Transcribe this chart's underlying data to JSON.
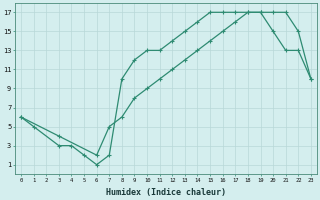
{
  "line1_x": [
    0,
    1,
    3,
    4,
    5,
    6,
    7,
    8,
    9,
    10,
    11,
    12,
    13,
    14,
    15,
    16,
    17,
    18,
    19,
    20,
    21,
    22,
    23
  ],
  "line1_y": [
    6,
    5,
    3,
    3,
    2,
    1,
    2,
    10,
    12,
    13,
    13,
    14,
    15,
    16,
    17,
    17,
    17,
    17,
    17,
    15,
    13,
    13,
    10
  ],
  "line2_x": [
    0,
    3,
    6,
    7,
    8,
    9,
    10,
    11,
    12,
    13,
    14,
    15,
    16,
    17,
    18,
    19,
    20,
    21,
    22,
    23
  ],
  "line2_y": [
    6,
    4,
    2,
    5,
    6,
    8,
    9,
    10,
    11,
    12,
    13,
    14,
    15,
    16,
    17,
    17,
    17,
    17,
    15,
    10
  ],
  "line_color": "#2e8b72",
  "bg_color": "#d4eeee",
  "grid_color": "#b8d8d8",
  "xlabel": "Humidex (Indice chaleur)",
  "xlim": [
    -0.5,
    23.5
  ],
  "ylim": [
    0,
    18
  ],
  "xticks": [
    0,
    1,
    2,
    3,
    4,
    5,
    6,
    7,
    8,
    9,
    10,
    11,
    12,
    13,
    14,
    15,
    16,
    17,
    18,
    19,
    20,
    21,
    22,
    23
  ],
  "yticks": [
    1,
    3,
    5,
    7,
    9,
    11,
    13,
    15,
    17
  ],
  "marker": "+",
  "markersize": 3,
  "linewidth": 0.9
}
